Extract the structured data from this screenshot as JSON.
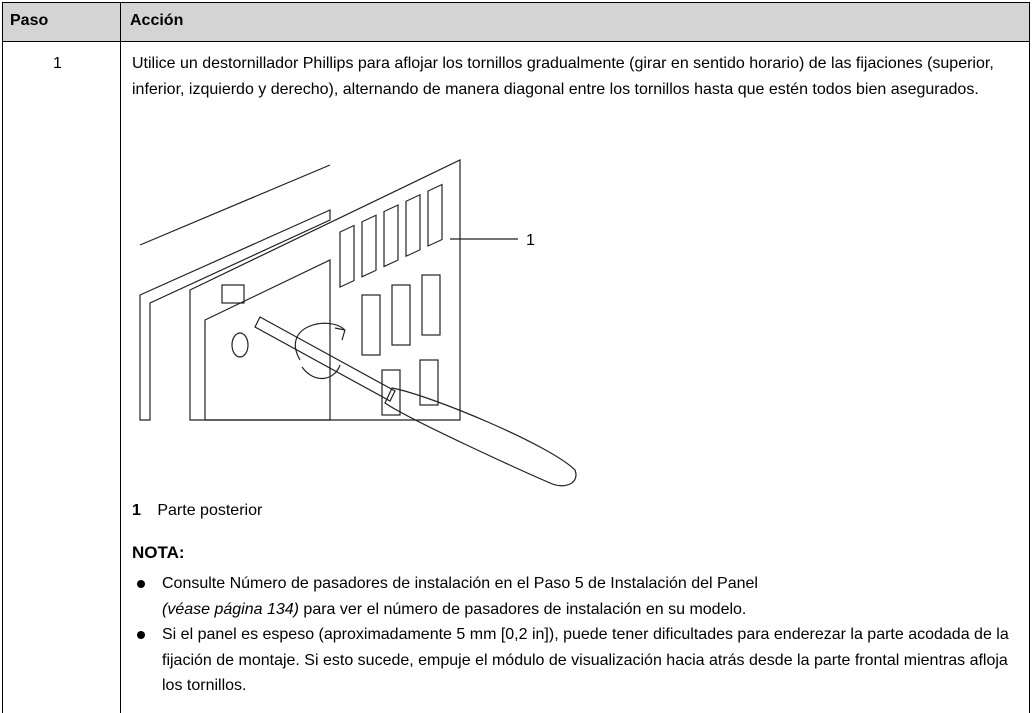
{
  "table": {
    "header": [
      "Paso",
      "Acción"
    ],
    "rows": [
      {
        "step": "1",
        "text": "Utilice un destornillador Phillips para aflojar los tornillos gradualmente (girar en sentido horario) de las fijaciones (superior, inferior, izquierdo y derecho), alternando de manera diagonal entre los tornillos hasta que estén todos bien asegurados.",
        "figure": {
          "callout": "1"
        },
        "legend": {
          "number": "1",
          "label": "Parte posterior"
        },
        "note": {
          "title": "NOTA:",
          "items": [
            {
              "before": "Consulte Número de pasadores de instalación en el Paso 5 de Instalación del Panel",
              "link": "(véase página 134)",
              "after": " para ver el número de pasadores de instalación en su modelo."
            },
            {
              "text": "Si el panel es espeso (aproximadamente 5 mm [0,2 in]), puede tener dificultades para enderezar la parte acodada de la fijación de montaje. Si esto sucede, empuje el módulo de visualización hacia atrás desde la parte frontal mientras afloja los tornillos."
            }
          ]
        }
      }
    ]
  }
}
